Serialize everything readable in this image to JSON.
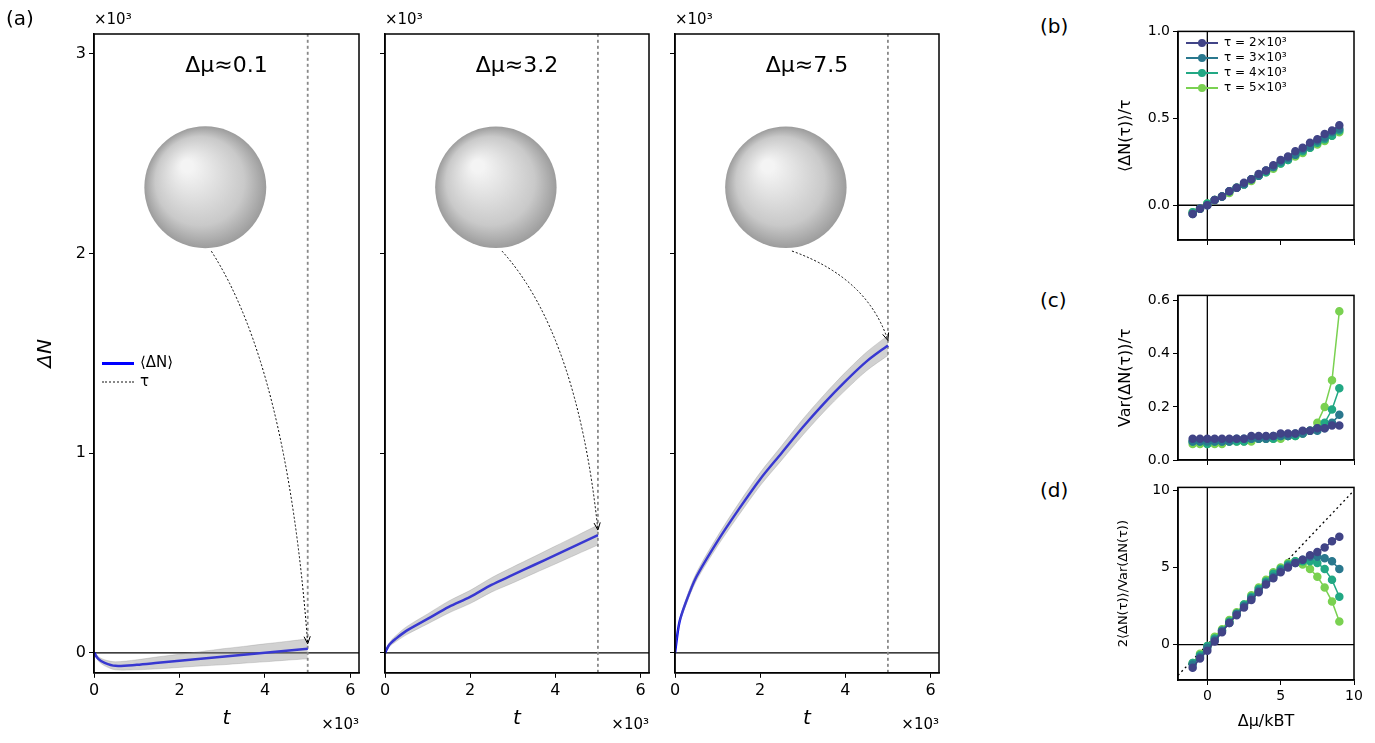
{
  "chart_data": [
    {
      "type": "line",
      "panel": "(a)",
      "title": "Δμ≈0.1",
      "x_label": "t",
      "y_label": "ΔN",
      "x_offset_label": "×10³",
      "y_offset_label": "×10³",
      "xlim": [
        0,
        6.2
      ],
      "xticks": [
        0,
        2,
        4,
        6
      ],
      "ylim": [
        -0.1,
        3.1
      ],
      "yticks": [
        0,
        1,
        2,
        3
      ],
      "grid": false,
      "legend": "center left",
      "x": [
        0,
        0.1,
        0.25,
        0.5,
        1,
        1.5,
        2,
        2.5,
        3,
        3.5,
        4,
        4.5,
        5
      ],
      "series": [
        {
          "name": "⟨ΔN⟩",
          "color": "#0000ff",
          "values": [
            0,
            -0.03,
            -0.05,
            -0.065,
            -0.06,
            -0.05,
            -0.04,
            -0.03,
            -0.02,
            -0.01,
            0.0,
            0.01,
            0.02
          ],
          "spread_low": [
            0,
            -0.04,
            -0.065,
            -0.085,
            -0.085,
            -0.08,
            -0.073,
            -0.066,
            -0.06,
            -0.052,
            -0.045,
            -0.037,
            -0.03
          ],
          "spread_high": [
            0,
            -0.02,
            -0.035,
            -0.045,
            -0.035,
            -0.02,
            -0.007,
            0.006,
            0.02,
            0.032,
            0.045,
            0.057,
            0.07
          ]
        },
        {
          "name": "τ",
          "type": "vline",
          "x": 5,
          "color": "#888888",
          "line_style": "dotted"
        }
      ],
      "reference_lines": [
        {
          "y": 0
        }
      ]
    },
    {
      "type": "line",
      "title": "Δμ≈3.2",
      "x_label": "t",
      "x_offset_label": "×10³",
      "y_offset_label": "×10³",
      "xlim": [
        0,
        6.2
      ],
      "xticks": [
        0,
        2,
        4,
        6
      ],
      "ylim": [
        -0.1,
        3.1
      ],
      "yticks": [
        0,
        1,
        2,
        3
      ],
      "grid": false,
      "tick_labels": "x",
      "x": [
        0,
        0.1,
        0.25,
        0.5,
        1,
        1.5,
        2,
        2.5,
        3,
        3.5,
        4,
        4.5,
        5
      ],
      "series": [
        {
          "name": "⟨ΔN⟩",
          "color": "#0000ff",
          "values": [
            0,
            0.04,
            0.07,
            0.11,
            0.17,
            0.23,
            0.28,
            0.34,
            0.39,
            0.44,
            0.49,
            0.54,
            0.59
          ],
          "spread_low": [
            0,
            0.03,
            0.055,
            0.09,
            0.145,
            0.2,
            0.247,
            0.304,
            0.35,
            0.398,
            0.445,
            0.493,
            0.54
          ],
          "spread_high": [
            0,
            0.05,
            0.085,
            0.13,
            0.195,
            0.26,
            0.313,
            0.376,
            0.43,
            0.482,
            0.535,
            0.587,
            0.64
          ]
        },
        {
          "name": "τ",
          "type": "vline",
          "x": 5,
          "color": "#888888",
          "line_style": "dotted"
        }
      ],
      "reference_lines": [
        {
          "y": 0
        }
      ]
    },
    {
      "type": "line",
      "title": "Δμ≈7.5",
      "x_label": "t",
      "x_offset_label": "×10³",
      "y_offset_label": "×10³",
      "xlim": [
        0,
        6.2
      ],
      "xticks": [
        0,
        2,
        4,
        6
      ],
      "ylim": [
        -0.1,
        3.1
      ],
      "yticks": [
        0,
        1,
        2,
        3
      ],
      "grid": false,
      "tick_labels": "x",
      "x": [
        0,
        0.1,
        0.25,
        0.5,
        1,
        1.5,
        2,
        2.5,
        3,
        3.5,
        4,
        4.5,
        5
      ],
      "series": [
        {
          "name": "⟨ΔN⟩",
          "color": "#0000ff",
          "values": [
            0,
            0.15,
            0.25,
            0.38,
            0.56,
            0.72,
            0.87,
            1.0,
            1.13,
            1.25,
            1.36,
            1.46,
            1.54
          ],
          "spread_low": [
            0,
            0.14,
            0.235,
            0.36,
            0.535,
            0.69,
            0.837,
            0.964,
            1.09,
            1.208,
            1.315,
            1.413,
            1.49
          ],
          "spread_high": [
            0,
            0.16,
            0.265,
            0.4,
            0.585,
            0.75,
            0.903,
            1.036,
            1.17,
            1.292,
            1.405,
            1.507,
            1.59
          ]
        },
        {
          "name": "τ",
          "type": "vline",
          "x": 5,
          "color": "#888888",
          "line_style": "dotted"
        }
      ],
      "reference_lines": [
        {
          "y": 0
        }
      ]
    },
    {
      "type": "line",
      "panel": "(b)",
      "y_label": "⟨ΔN(τ)⟩/τ",
      "xlim": [
        -2,
        10
      ],
      "xticks": [
        0,
        5,
        10
      ],
      "ylim": [
        -0.2,
        1.0
      ],
      "yticks": [
        {
          "value": 0,
          "label": "0.0"
        },
        {
          "value": 0.5,
          "label": "0.5"
        },
        {
          "value": 1,
          "label": "1.0"
        }
      ],
      "grid": false,
      "tick_labels": "y",
      "legend": "upper left",
      "marker": "circle",
      "x": [
        -1,
        -0.5,
        0,
        0.5,
        1,
        1.5,
        2,
        2.5,
        3,
        3.5,
        4,
        4.5,
        5,
        5.5,
        6,
        6.5,
        7,
        7.5,
        8,
        8.5,
        9
      ],
      "series": [
        {
          "name": "τ = 2×10³",
          "color": "#414487",
          "values": [
            -0.05,
            -0.02,
            0.0,
            0.03,
            0.05,
            0.08,
            0.1,
            0.13,
            0.15,
            0.18,
            0.2,
            0.23,
            0.26,
            0.28,
            0.31,
            0.33,
            0.36,
            0.38,
            0.41,
            0.43,
            0.46
          ]
        },
        {
          "name": "τ = 3×10³",
          "color": "#2a788e",
          "values": [
            -0.05,
            -0.02,
            0.0,
            0.03,
            0.05,
            0.08,
            0.1,
            0.12,
            0.15,
            0.17,
            0.2,
            0.22,
            0.25,
            0.27,
            0.29,
            0.32,
            0.34,
            0.37,
            0.39,
            0.42,
            0.44
          ]
        },
        {
          "name": "τ = 4×10³",
          "color": "#22a884",
          "values": [
            -0.04,
            -0.02,
            0.01,
            0.03,
            0.05,
            0.08,
            0.1,
            0.12,
            0.15,
            0.17,
            0.19,
            0.22,
            0.24,
            0.26,
            0.29,
            0.31,
            0.33,
            0.36,
            0.38,
            0.4,
            0.43
          ]
        },
        {
          "name": "τ = 5×10³",
          "color": "#7ad151",
          "values": [
            -0.04,
            -0.02,
            0.01,
            0.03,
            0.05,
            0.07,
            0.1,
            0.12,
            0.14,
            0.17,
            0.19,
            0.21,
            0.24,
            0.26,
            0.28,
            0.3,
            0.33,
            0.35,
            0.37,
            0.4,
            0.42
          ]
        }
      ],
      "reference_lines": [
        {
          "x": 0
        },
        {
          "y": 0
        }
      ]
    },
    {
      "type": "line",
      "panel": "(c)",
      "y_label": "Var(ΔN(τ))/τ",
      "xlim": [
        -2,
        10
      ],
      "xticks": [
        0,
        5,
        10
      ],
      "ylim": [
        0,
        0.62
      ],
      "yticks": [
        {
          "value": 0,
          "label": "0.0"
        },
        {
          "value": 0.2,
          "label": "0.2"
        },
        {
          "value": 0.4,
          "label": "0.4"
        },
        {
          "value": 0.6,
          "label": "0.6"
        }
      ],
      "grid": false,
      "tick_labels": "y",
      "marker": "circle",
      "x": [
        -1,
        -0.5,
        0,
        0.5,
        1,
        1.5,
        2,
        2.5,
        3,
        3.5,
        4,
        4.5,
        5,
        5.5,
        6,
        6.5,
        7,
        7.5,
        8,
        8.5,
        9
      ],
      "series": [
        {
          "name": "τ = 2×10³",
          "color": "#414487",
          "values": [
            0.08,
            0.08,
            0.08,
            0.08,
            0.08,
            0.08,
            0.08,
            0.08,
            0.09,
            0.09,
            0.09,
            0.09,
            0.1,
            0.1,
            0.1,
            0.11,
            0.11,
            0.12,
            0.12,
            0.13,
            0.13
          ]
        },
        {
          "name": "τ = 3×10³",
          "color": "#2a788e",
          "values": [
            0.07,
            0.07,
            0.07,
            0.07,
            0.07,
            0.07,
            0.08,
            0.08,
            0.08,
            0.08,
            0.08,
            0.09,
            0.09,
            0.09,
            0.1,
            0.1,
            0.11,
            0.11,
            0.12,
            0.14,
            0.17
          ]
        },
        {
          "name": "τ = 4×10³",
          "color": "#22a884",
          "values": [
            0.07,
            0.07,
            0.06,
            0.07,
            0.07,
            0.07,
            0.07,
            0.07,
            0.08,
            0.08,
            0.08,
            0.08,
            0.09,
            0.09,
            0.09,
            0.1,
            0.11,
            0.12,
            0.14,
            0.19,
            0.27
          ]
        },
        {
          "name": "τ = 5×10³",
          "color": "#7ad151",
          "values": [
            0.06,
            0.06,
            0.06,
            0.06,
            0.06,
            0.07,
            0.07,
            0.07,
            0.07,
            0.08,
            0.08,
            0.08,
            0.08,
            0.09,
            0.09,
            0.1,
            0.11,
            0.14,
            0.2,
            0.3,
            0.56
          ]
        }
      ],
      "reference_lines": [
        {
          "x": 0
        }
      ]
    },
    {
      "type": "line",
      "panel": "(d)",
      "x_label": "Δμ/kBT",
      "y_label": "2⟨ΔN(τ)⟩/Var(ΔN(τ))",
      "xlim": [
        -2,
        10
      ],
      "xticks": [
        0,
        5,
        10
      ],
      "ylim": [
        -2.3,
        10.2
      ],
      "yticks": [
        0,
        5,
        10
      ],
      "grid": false,
      "marker": "circle",
      "x": [
        -1,
        -0.5,
        0,
        0.5,
        1,
        1.5,
        2,
        2.5,
        3,
        3.5,
        4,
        4.5,
        5,
        5.5,
        6,
        6.5,
        7,
        7.5,
        8,
        8.5,
        9
      ],
      "series": [
        {
          "name": "τ = 2×10³",
          "color": "#414487",
          "values": [
            -1.5,
            -0.9,
            -0.4,
            0.2,
            0.8,
            1.4,
            1.9,
            2.4,
            2.9,
            3.4,
            3.9,
            4.3,
            4.7,
            5.0,
            5.3,
            5.5,
            5.8,
            6.0,
            6.3,
            6.7,
            7.0
          ]
        },
        {
          "name": "τ = 3×10³",
          "color": "#2a788e",
          "values": [
            -1.3,
            -0.8,
            -0.2,
            0.3,
            0.9,
            1.4,
            2.0,
            2.5,
            3.0,
            3.5,
            4.0,
            4.4,
            4.8,
            5.1,
            5.3,
            5.5,
            5.7,
            5.7,
            5.6,
            5.4,
            4.9
          ]
        },
        {
          "name": "τ = 4×10³",
          "color": "#22a884",
          "values": [
            -1.2,
            -0.7,
            -0.1,
            0.4,
            0.9,
            1.5,
            2.0,
            2.6,
            3.1,
            3.6,
            4.1,
            4.6,
            4.9,
            5.2,
            5.4,
            5.4,
            5.4,
            5.3,
            4.9,
            4.2,
            3.1
          ]
        },
        {
          "name": "τ = 5×10³",
          "color": "#7ad151",
          "values": [
            -1.2,
            -0.6,
            -0.1,
            0.5,
            1.0,
            1.6,
            2.1,
            2.6,
            3.2,
            3.7,
            4.2,
            4.7,
            5.0,
            5.3,
            5.4,
            5.2,
            4.9,
            4.4,
            3.7,
            2.8,
            1.5
          ]
        }
      ],
      "reference_lines": [
        {
          "x": 0
        },
        {
          "y": 0
        },
        {
          "slope": 1,
          "intercept": 0,
          "line_style": "dotted"
        }
      ]
    }
  ]
}
